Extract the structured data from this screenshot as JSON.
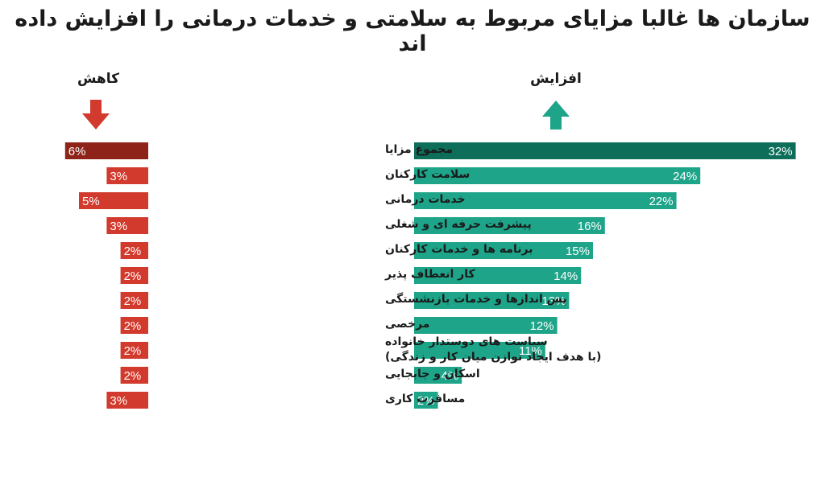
{
  "title": "سازمان ها غالبا مزایای مربوط به سلامتی و خدمات درمانی را افزایش داده اند",
  "headers": {
    "decrease": "کاهش",
    "increase": "افزایش"
  },
  "colors": {
    "decrease": "#d13a2c",
    "decrease_highlight": "#8e2419",
    "increase": "#1ea489",
    "increase_highlight": "#0d6e5a"
  },
  "chart_data": {
    "type": "bar",
    "title": "سازمان ها غالبا مزایای مربوط به سلامتی و خدمات درمانی را افزایش داده اند",
    "categories": [
      "مجموع مزایا",
      "سلامت کارکنان",
      "خدمات درمانی",
      "پیشرفت حرفه ای و شغلی",
      "برنامه ها و خدمات کارکنان",
      "کار انعطاف پذیر",
      "پس اندازها و خدمات بازنشستگی",
      "مرخصی",
      "سیاست های دوستدار خانواده\n(با هدف ایجاد توازن میان کار و زندگی)",
      "اسکان و جابجایی",
      "مسافرت کاری"
    ],
    "series": [
      {
        "name": "کاهش",
        "values": [
          6,
          3,
          5,
          3,
          2,
          2,
          2,
          2,
          2,
          2,
          3
        ],
        "labels": [
          "6%",
          "3%",
          "5%",
          "3%",
          "2%",
          "2%",
          "2%",
          "2%",
          "2%",
          "2%",
          "3%"
        ]
      },
      {
        "name": "افزایش",
        "values": [
          32,
          24,
          22,
          16,
          15,
          14,
          13,
          12,
          11,
          4,
          2
        ],
        "labels": [
          "32%",
          "24%",
          "22%",
          "16%",
          "15%",
          "14%",
          "13%",
          "12%",
          "11%",
          "4%",
          "2%"
        ]
      }
    ],
    "unit": "%",
    "highlighted_category_index": 0
  }
}
